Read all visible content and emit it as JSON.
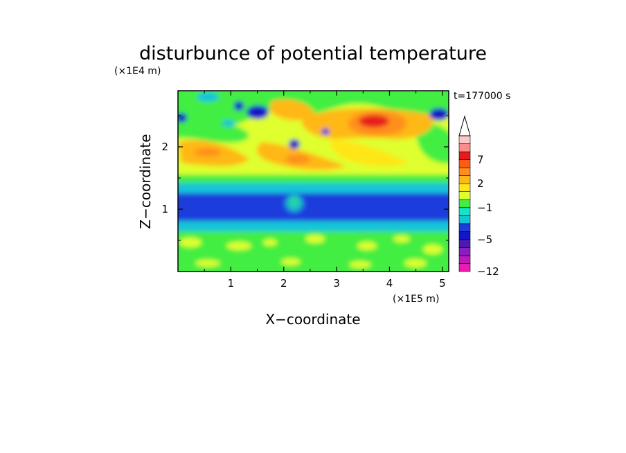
{
  "chart_data": {
    "type": "heatmap",
    "title": "disturbunce of potential temperature",
    "time_label": "t=177000 s",
    "xlabel": "X−coordinate",
    "ylabel": "Z−coordinate",
    "x_unit": "(×1E5 m)",
    "y_unit": "(×1E4 m)",
    "xlim": [
      0,
      5.12
    ],
    "ylim": [
      0,
      2.9
    ],
    "x_ticks": [
      1,
      2,
      3,
      4,
      5
    ],
    "x_tick_labels": [
      "1",
      "2",
      "3",
      "4",
      "5"
    ],
    "y_ticks": [
      1,
      2
    ],
    "y_tick_labels": [
      "1",
      "2"
    ],
    "colorbar": {
      "levels": [
        -12,
        -11,
        -9,
        -7,
        -5,
        -4,
        -3,
        -2,
        -1,
        0,
        1,
        2,
        3,
        5,
        7,
        9,
        11
      ],
      "colors": [
        "#ee1ab0",
        "#bb19bb",
        "#8a1cc0",
        "#4b1ab6",
        "#1515c8",
        "#1a3ddc",
        "#14c4d8",
        "#13e6c8",
        "#43ee43",
        "#dfff2e",
        "#ffe619",
        "#ffb819",
        "#ff8f1a",
        "#ff5b14",
        "#e81b1b",
        "#ff8c8c",
        "#ffc6c6"
      ],
      "tick_values": [
        7,
        2,
        -1,
        -5,
        -12
      ],
      "tick_labels": [
        "7",
        "2",
        "−1",
        "−5",
        "−12"
      ]
    }
  }
}
